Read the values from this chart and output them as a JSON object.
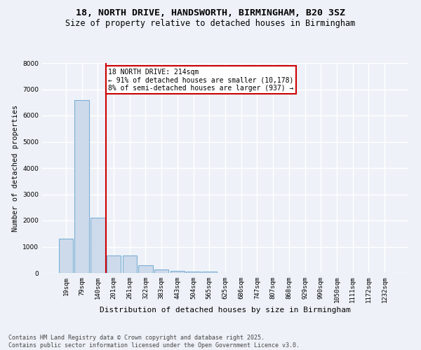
{
  "title": "18, NORTH DRIVE, HANDSWORTH, BIRMINGHAM, B20 3SZ",
  "subtitle": "Size of property relative to detached houses in Birmingham",
  "xlabel": "Distribution of detached houses by size in Birmingham",
  "ylabel": "Number of detached properties",
  "categories": [
    "19sqm",
    "79sqm",
    "140sqm",
    "201sqm",
    "261sqm",
    "322sqm",
    "383sqm",
    "443sqm",
    "504sqm",
    "565sqm",
    "625sqm",
    "686sqm",
    "747sqm",
    "807sqm",
    "868sqm",
    "929sqm",
    "990sqm",
    "1050sqm",
    "1111sqm",
    "1172sqm",
    "1232sqm"
  ],
  "values": [
    1300,
    6600,
    2100,
    680,
    680,
    300,
    130,
    80,
    50,
    50,
    0,
    0,
    0,
    0,
    0,
    0,
    0,
    0,
    0,
    0,
    0
  ],
  "bar_color": "#cddaeb",
  "bar_edge_color": "#7aafd4",
  "vline_x_index": 3,
  "vline_color": "#cc0000",
  "annotation_text": "18 NORTH DRIVE: 214sqm\n← 91% of detached houses are smaller (10,178)\n8% of semi-detached houses are larger (937) →",
  "annotation_box_color": "#ffffff",
  "annotation_box_edge": "#cc0000",
  "ylim": [
    0,
    8000
  ],
  "yticks": [
    0,
    1000,
    2000,
    3000,
    4000,
    5000,
    6000,
    7000,
    8000
  ],
  "bg_color": "#eef2f8",
  "plot_bg_color": "#eef2f8",
  "grid_color": "#ffffff",
  "footer": "Contains HM Land Registry data © Crown copyright and database right 2025.\nContains public sector information licensed under the Open Government Licence v3.0.",
  "title_fontsize": 9.5,
  "subtitle_fontsize": 8.5,
  "xlabel_fontsize": 8,
  "ylabel_fontsize": 7.5,
  "tick_fontsize": 6.5,
  "footer_fontsize": 6,
  "annotation_fontsize": 7
}
